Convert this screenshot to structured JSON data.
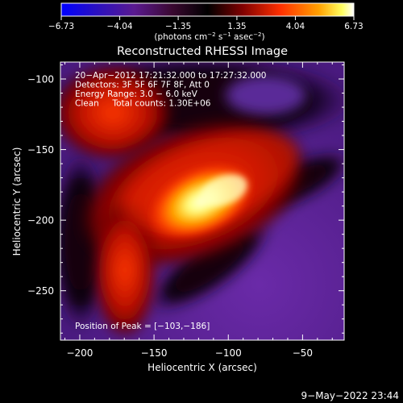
{
  "chart_data": {
    "type": "heatmap",
    "title": "Reconstructed RHESSI Image",
    "xlabel": "Heliocentric X (arcsec)",
    "ylabel": "Heliocentric Y (arcsec)",
    "xlim": [
      -213,
      -22
    ],
    "ylim": [
      -285,
      -88
    ],
    "xticks": [
      -200,
      -150,
      -100,
      -50
    ],
    "yticks": [
      -100,
      -150,
      -200,
      -250
    ],
    "xtick_labels": [
      "−200",
      "−150",
      "−100",
      "−50"
    ],
    "ytick_labels": [
      "−100",
      "−150",
      "−200",
      "−250"
    ],
    "colorbar": {
      "ticks": [
        -6.73,
        -4.04,
        -1.35,
        1.35,
        4.04,
        6.73
      ],
      "tick_labels": [
        "−6.73",
        "−4.04",
        "−1.35",
        "1.35",
        "4.04",
        "6.73"
      ],
      "range": [
        -6.73,
        6.73
      ],
      "label_prefix": "(photons cm",
      "label_sup1": "−2",
      "label_mid": " s",
      "label_sup2": "−1",
      "label_mid2": " asec",
      "label_sup3": "−2",
      "label_suffix": ")"
    },
    "annotations": [
      "20−Apr−2012 17:21:32.000 to 17:27:32.000",
      "Detectors: 3F 5F 6F 7F 8F, Att 0",
      "Energy Range: 3.0 − 6.0 keV",
      "Clean     Total counts: 1.30E+06"
    ],
    "peak_label": "Position of Peak = [−103,−186]",
    "peak": [
      -103,
      -186
    ],
    "grid": false
  },
  "footer": {
    "timestamp": "9−May−2022 23:44"
  },
  "colors": {
    "background": "#000000",
    "text": "#ffffff",
    "colormap": [
      "#0000ff",
      "#3a0a8c",
      "#5a1a90",
      "#4a1030",
      "#000000",
      "#5a0000",
      "#b01000",
      "#ff4000",
      "#ffa000",
      "#ffff80",
      "#ffffff"
    ]
  }
}
